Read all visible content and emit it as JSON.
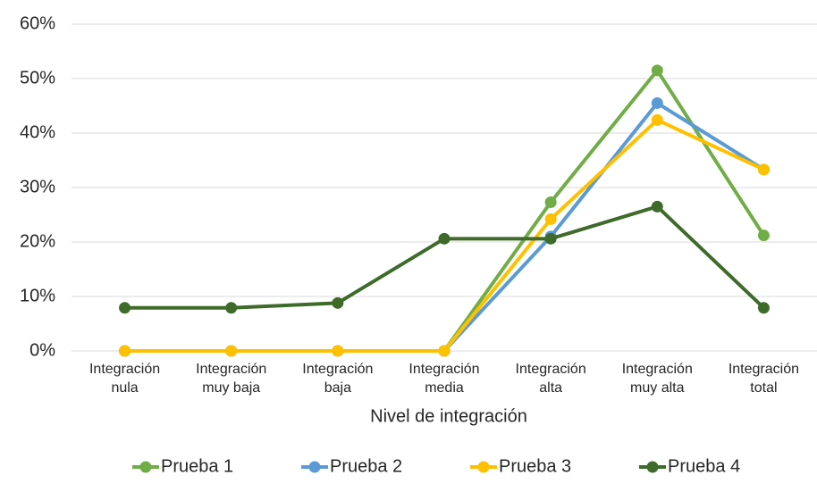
{
  "chart_data": {
    "type": "line",
    "x_label": "Nivel de integración",
    "categories": [
      [
        "Integración",
        "nula"
      ],
      [
        "Integración",
        "muy baja"
      ],
      [
        "Integración",
        "baja"
      ],
      [
        "Integración",
        "media"
      ],
      [
        "Integración",
        "alta"
      ],
      [
        "Integración",
        "muy alta"
      ],
      [
        "Integración",
        "total"
      ]
    ],
    "series": [
      {
        "name": "Prueba 1",
        "color": "#70ad47",
        "values": [
          0,
          0,
          0,
          0,
          27.3,
          51.5,
          21.2
        ]
      },
      {
        "name": "Prueba 2",
        "color": "#5b9bd5",
        "values": [
          0,
          0,
          0,
          0,
          21,
          45.5,
          33.3
        ]
      },
      {
        "name": "Prueba 3",
        "color": "#ffc000",
        "values": [
          0,
          0,
          0,
          0,
          24.2,
          42.4,
          33.3
        ]
      },
      {
        "name": "Prueba 4",
        "color": "#3e6b2a",
        "values": [
          7.9,
          7.9,
          8.8,
          20.6,
          20.6,
          26.5,
          7.9
        ]
      }
    ],
    "ylim": [
      0,
      60
    ],
    "yticks": [
      {
        "value": 0,
        "label": "0%"
      },
      {
        "value": 10,
        "label": "10%"
      },
      {
        "value": 20,
        "label": "20%"
      },
      {
        "value": 30,
        "label": "30%"
      },
      {
        "value": 40,
        "label": "40%"
      },
      {
        "value": 50,
        "label": "50%"
      },
      {
        "value": 60,
        "label": "60%"
      }
    ],
    "grid": true,
    "legend": "bottom"
  }
}
